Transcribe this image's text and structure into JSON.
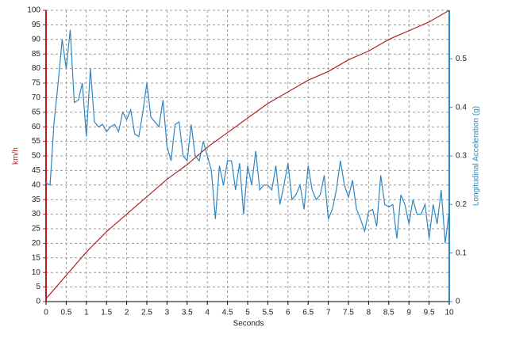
{
  "chart_data": {
    "type": "line",
    "xlabel": "Seconds",
    "ylabel": "km/h",
    "y2label": "Longitudinal Acceleration (g)",
    "xlim": [
      0,
      10
    ],
    "xticks": [
      0,
      0.5,
      1,
      1.5,
      2,
      2.5,
      3,
      3.5,
      4,
      4.5,
      5,
      5.5,
      6,
      6.5,
      7,
      7.5,
      8,
      8.5,
      9,
      9.5,
      10
    ],
    "ylim": [
      0,
      100
    ],
    "yticks": [
      0,
      5,
      10,
      15,
      20,
      25,
      30,
      35,
      40,
      45,
      50,
      55,
      60,
      65,
      70,
      75,
      80,
      85,
      90,
      95,
      100
    ],
    "y2lim": [
      0,
      0.6
    ],
    "y2ticks": [
      0,
      0.1,
      0.2,
      0.3,
      0.4,
      0.5
    ],
    "grid": true,
    "series": [
      {
        "color": "#b22222",
        "x": [
          0,
          0.5,
          1,
          1.5,
          2,
          2.5,
          3,
          3.5,
          4,
          4.5,
          5,
          5.5,
          6,
          6.5,
          7,
          7.5,
          8,
          8.5,
          9,
          9.5,
          10
        ],
        "values": [
          1,
          9,
          17,
          24,
          30,
          36,
          42,
          47,
          53,
          58,
          63,
          68,
          72,
          76,
          79,
          83,
          86,
          90,
          93,
          96,
          100
        ]
      },
      {
        "color": "#2e86c1",
        "axis": "y2",
        "x": [
          0,
          0.1,
          0.2,
          0.3,
          0.4,
          0.5,
          0.6,
          0.7,
          0.8,
          0.9,
          1,
          1.1,
          1.2,
          1.3,
          1.4,
          1.5,
          1.6,
          1.7,
          1.8,
          1.9,
          2,
          2.1,
          2.2,
          2.3,
          2.4,
          2.5,
          2.6,
          2.7,
          2.8,
          2.9,
          3,
          3.1,
          3.2,
          3.3,
          3.4,
          3.5,
          3.6,
          3.7,
          3.8,
          3.9,
          4,
          4.1,
          4.2,
          4.3,
          4.4,
          4.5,
          4.6,
          4.7,
          4.8,
          4.9,
          5,
          5.1,
          5.2,
          5.3,
          5.4,
          5.5,
          5.6,
          5.7,
          5.8,
          5.9,
          6,
          6.1,
          6.2,
          6.3,
          6.4,
          6.5,
          6.6,
          6.7,
          6.8,
          6.9,
          7,
          7.1,
          7.2,
          7.3,
          7.4,
          7.5,
          7.6,
          7.7,
          7.8,
          7.9,
          8,
          8.1,
          8.2,
          8.3,
          8.4,
          8.5,
          8.6,
          8.7,
          8.8,
          8.9,
          9,
          9.1,
          9.2,
          9.3,
          9.4,
          9.5,
          9.6,
          9.7,
          9.8,
          9.9,
          10
        ],
        "values": [
          0.245,
          0.24,
          0.37,
          0.45,
          0.54,
          0.48,
          0.56,
          0.41,
          0.415,
          0.45,
          0.34,
          0.48,
          0.37,
          0.36,
          0.365,
          0.35,
          0.36,
          0.365,
          0.35,
          0.39,
          0.375,
          0.395,
          0.345,
          0.34,
          0.39,
          0.45,
          0.38,
          0.37,
          0.36,
          0.415,
          0.32,
          0.29,
          0.365,
          0.37,
          0.3,
          0.29,
          0.365,
          0.3,
          0.29,
          0.33,
          0.3,
          0.27,
          0.17,
          0.28,
          0.24,
          0.29,
          0.29,
          0.23,
          0.285,
          0.18,
          0.28,
          0.24,
          0.31,
          0.23,
          0.24,
          0.24,
          0.23,
          0.28,
          0.2,
          0.24,
          0.285,
          0.21,
          0.22,
          0.24,
          0.19,
          0.28,
          0.23,
          0.21,
          0.22,
          0.26,
          0.17,
          0.19,
          0.23,
          0.29,
          0.24,
          0.215,
          0.25,
          0.19,
          0.17,
          0.145,
          0.185,
          0.19,
          0.155,
          0.26,
          0.2,
          0.195,
          0.2,
          0.13,
          0.22,
          0.2,
          0.16,
          0.21,
          0.18,
          0.18,
          0.2,
          0.13,
          0.2,
          0.16,
          0.23,
          0.12,
          0.19
        ]
      }
    ]
  }
}
